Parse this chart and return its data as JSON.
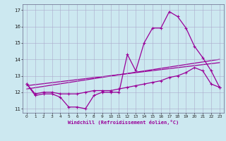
{
  "title": "",
  "xlabel": "Windchill (Refroidissement éolien,°C)",
  "background_color": "#cce8f0",
  "line_color": "#990099",
  "xlim": [
    -0.5,
    23.5
  ],
  "ylim": [
    10.75,
    17.35
  ],
  "yticks": [
    11,
    12,
    13,
    14,
    15,
    16,
    17
  ],
  "xticks": [
    0,
    1,
    2,
    3,
    4,
    5,
    6,
    7,
    8,
    9,
    10,
    11,
    12,
    13,
    14,
    15,
    16,
    17,
    18,
    19,
    20,
    21,
    22,
    23
  ],
  "series1_x": [
    0,
    1,
    2,
    3,
    4,
    5,
    6,
    7,
    8,
    9,
    10,
    11,
    12,
    13,
    14,
    15,
    16,
    17,
    18,
    19,
    20,
    21,
    22,
    23
  ],
  "series1_y": [
    12.5,
    11.8,
    11.9,
    11.9,
    11.7,
    11.1,
    11.1,
    11.0,
    11.8,
    12.0,
    12.0,
    12.0,
    14.3,
    13.3,
    15.0,
    15.9,
    15.9,
    16.9,
    16.6,
    15.9,
    14.8,
    14.1,
    13.3,
    12.3
  ],
  "series2_x": [
    0,
    1,
    2,
    3,
    4,
    5,
    6,
    7,
    8,
    9,
    10,
    11,
    12,
    13,
    14,
    15,
    16,
    17,
    18,
    19,
    20,
    21,
    22,
    23
  ],
  "series2_y": [
    12.5,
    11.9,
    12.0,
    12.0,
    11.9,
    11.9,
    11.9,
    12.0,
    12.1,
    12.1,
    12.1,
    12.2,
    12.3,
    12.4,
    12.5,
    12.6,
    12.7,
    12.9,
    13.0,
    13.2,
    13.5,
    13.3,
    12.5,
    12.3
  ],
  "trendline1_x": [
    0,
    23
  ],
  "trendline1_y": [
    12.2,
    14.0
  ],
  "trendline2_x": [
    0,
    23
  ],
  "trendline2_y": [
    12.4,
    13.8
  ],
  "grid_color": "#aaaacc",
  "spine_color": "#666688"
}
